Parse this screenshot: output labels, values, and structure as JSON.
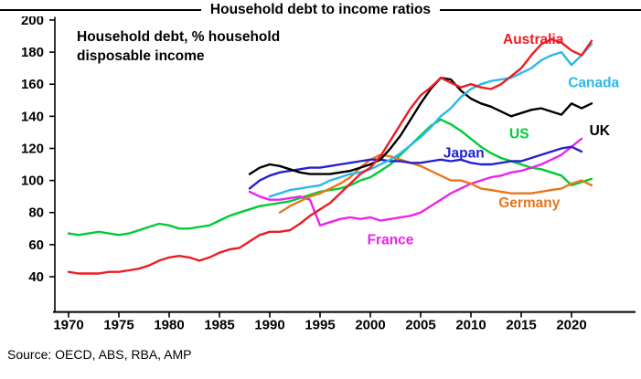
{
  "page": {
    "source": "Source: OECD, ABS, RBA, AMP"
  },
  "chart_data": {
    "type": "line",
    "title": "Household debt to income ratios",
    "annotation": {
      "line1": "Household debt, % household",
      "line2": "disposable income"
    },
    "xlabel": "",
    "ylabel": "",
    "ylim": [
      18,
      202
    ],
    "xlim": [
      1968.6,
      2026
    ],
    "yticks": [
      40,
      60,
      80,
      100,
      120,
      140,
      160,
      180,
      200
    ],
    "xticks": [
      1970,
      1975,
      1980,
      1985,
      1990,
      1995,
      2000,
      2005,
      2010,
      2015,
      2020
    ],
    "grid": false,
    "legend": "inline-colored-labels",
    "series": [
      {
        "name": "US",
        "color": "#00cc33",
        "start_year": 1970,
        "values": [
          67,
          66,
          67,
          68,
          67,
          66,
          67,
          69,
          71,
          73,
          72,
          70,
          70,
          71,
          72,
          75,
          78,
          80,
          82,
          84,
          85,
          86,
          87,
          89,
          91,
          93,
          94,
          95,
          97,
          100,
          102,
          106,
          110,
          116,
          122,
          128,
          134,
          138,
          135,
          131,
          126,
          121,
          117,
          114,
          112,
          110,
          108,
          107,
          105,
          103,
          97,
          99,
          101
        ],
        "label": {
          "year": 2014.8,
          "value": 129,
          "anchor": "middle"
        }
      },
      {
        "name": "France",
        "color": "#ee22ee",
        "start_year": 1988,
        "values": [
          93,
          90,
          88,
          88,
          89,
          90,
          88,
          72,
          74,
          76,
          77,
          76,
          77,
          75,
          76,
          77,
          78,
          80,
          84,
          88,
          92,
          95,
          98,
          100,
          102,
          103,
          105,
          106,
          108,
          110,
          113,
          116,
          121,
          126
        ],
        "label": {
          "year": 2002,
          "value": 63,
          "anchor": "middle"
        }
      },
      {
        "name": "Germany",
        "color": "#e8761b",
        "start_year": 1991,
        "values": [
          80,
          84,
          87,
          90,
          92,
          95,
          98,
          102,
          108,
          113,
          116,
          115,
          113,
          111,
          109,
          106,
          103,
          100,
          100,
          98,
          95,
          94,
          93,
          92,
          92,
          92,
          93,
          94,
          95,
          98,
          100,
          97
        ],
        "label": {
          "year": 2015.8,
          "value": 86,
          "anchor": "middle"
        }
      },
      {
        "name": "Japan",
        "color": "#2222cc",
        "start_year": 1988,
        "values": [
          95,
          100,
          103,
          105,
          106,
          107,
          108,
          108,
          109,
          110,
          111,
          112,
          113,
          113,
          112,
          112,
          111,
          111,
          112,
          113,
          112,
          113,
          111,
          110,
          110,
          111,
          112,
          112,
          114,
          116,
          118,
          120,
          121,
          118
        ],
        "label": {
          "year": 2009.3,
          "value": 117,
          "anchor": "middle"
        }
      },
      {
        "name": "UK",
        "color": "#000000",
        "start_year": 1988,
        "values": [
          104,
          108,
          110,
          109,
          107,
          105,
          104,
          104,
          104,
          105,
          106,
          108,
          110,
          113,
          120,
          128,
          138,
          148,
          157,
          164,
          163,
          156,
          151,
          148,
          146,
          143,
          140,
          142,
          144,
          145,
          143,
          141,
          148,
          145,
          148
        ],
        "label": {
          "year": 2022.8,
          "value": 131,
          "anchor": "middle"
        }
      },
      {
        "name": "Canada",
        "color": "#2ab9ea",
        "start_year": 1990,
        "values": [
          90,
          92,
          94,
          95,
          96,
          97,
          100,
          102,
          104,
          105,
          107,
          110,
          113,
          117,
          122,
          127,
          133,
          140,
          145,
          152,
          157,
          160,
          162,
          163,
          164,
          167,
          170,
          175,
          178,
          180,
          172,
          178,
          185
        ],
        "label": {
          "year": 2022.2,
          "value": 161,
          "anchor": "middle"
        }
      },
      {
        "name": "Australia",
        "color": "#ed1c24",
        "start_year": 1970,
        "values": [
          43,
          42,
          42,
          42,
          43,
          43,
          44,
          45,
          47,
          50,
          52,
          53,
          52,
          50,
          52,
          55,
          57,
          58,
          62,
          66,
          68,
          68,
          69,
          73,
          78,
          82,
          86,
          92,
          98,
          104,
          108,
          115,
          125,
          135,
          145,
          153,
          158,
          164,
          161,
          158,
          160,
          158,
          157,
          160,
          165,
          170,
          178,
          185,
          188,
          186,
          181,
          178,
          187
        ],
        "label": {
          "year": 2016.2,
          "value": 188,
          "anchor": "middle"
        }
      }
    ]
  }
}
